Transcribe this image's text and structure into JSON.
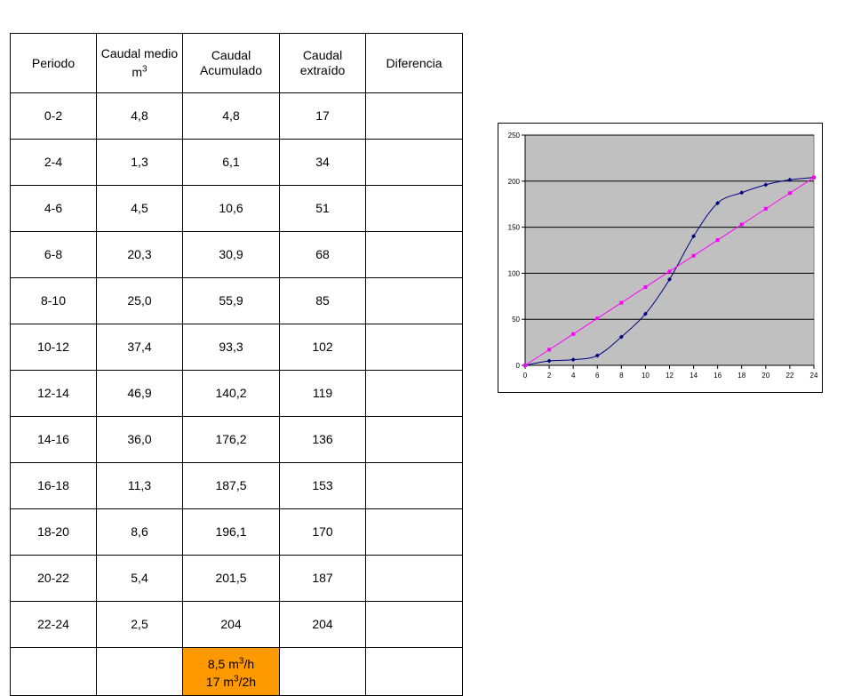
{
  "table": {
    "headers": {
      "periodo": "Periodo",
      "caudal_medio": "Caudal medio",
      "caudal_medio_unit_base": "m",
      "caudal_medio_unit_exp": "3",
      "caudal_acumulado": "Caudal Acumulado",
      "caudal_extraido": "Caudal extraído",
      "diferencia": "Diferencia"
    },
    "rows": [
      {
        "periodo": "0-2",
        "medio": "4,8",
        "acumulado": "4,8",
        "extraido": "17",
        "diferencia": ""
      },
      {
        "periodo": "2-4",
        "medio": "1,3",
        "acumulado": "6,1",
        "extraido": "34",
        "diferencia": ""
      },
      {
        "periodo": "4-6",
        "medio": "4,5",
        "acumulado": "10,6",
        "extraido": "51",
        "diferencia": ""
      },
      {
        "periodo": "6-8",
        "medio": "20,3",
        "acumulado": "30,9",
        "extraido": "68",
        "diferencia": ""
      },
      {
        "periodo": "8-10",
        "medio": "25,0",
        "acumulado": "55,9",
        "extraido": "85",
        "diferencia": ""
      },
      {
        "periodo": "10-12",
        "medio": "37,4",
        "acumulado": "93,3",
        "extraido": "102",
        "diferencia": ""
      },
      {
        "periodo": "12-14",
        "medio": "46,9",
        "acumulado": "140,2",
        "extraido": "119",
        "diferencia": ""
      },
      {
        "periodo": "14-16",
        "medio": "36,0",
        "acumulado": "176,2",
        "extraido": "136",
        "diferencia": ""
      },
      {
        "periodo": "16-18",
        "medio": "11,3",
        "acumulado": "187,5",
        "extraido": "153",
        "diferencia": ""
      },
      {
        "periodo": "18-20",
        "medio": "8,6",
        "acumulado": "196,1",
        "extraido": "170",
        "diferencia": ""
      },
      {
        "periodo": "20-22",
        "medio": "5,4",
        "acumulado": "201,5",
        "extraido": "187",
        "diferencia": ""
      },
      {
        "periodo": "22-24",
        "medio": "2,5",
        "acumulado": "204",
        "extraido": "204",
        "diferencia": ""
      }
    ],
    "footer": {
      "line1_prefix": "8,5 m",
      "line1_exp": "3",
      "line1_suffix": "/h",
      "line2_prefix": "17 m",
      "line2_exp": "3",
      "line2_suffix": "/2h"
    },
    "highlight_color": "#ff9900"
  },
  "chart_data": {
    "type": "line",
    "title": "",
    "xlabel": "",
    "ylabel": "",
    "x": [
      0,
      2,
      4,
      6,
      8,
      10,
      12,
      14,
      16,
      18,
      20,
      22,
      24
    ],
    "xlim": [
      0,
      24
    ],
    "ylim": [
      0,
      250
    ],
    "xticks": [
      0,
      2,
      4,
      6,
      8,
      10,
      12,
      14,
      16,
      18,
      20,
      22,
      24
    ],
    "yticks": [
      0,
      50,
      100,
      150,
      200,
      250
    ],
    "grid": "horizontal",
    "plot_background": "#c0c0c0",
    "series": [
      {
        "values": [
          0,
          4.8,
          6.1,
          10.6,
          30.9,
          55.9,
          93.3,
          140.2,
          176.2,
          187.5,
          196.1,
          201.5,
          204
        ],
        "color": "#000080",
        "marker": "diamond",
        "smooth": true
      },
      {
        "values": [
          0,
          17,
          34,
          51,
          68,
          85,
          102,
          119,
          136,
          153,
          170,
          187,
          204
        ],
        "color": "#ff00ff",
        "marker": "square",
        "smooth": false
      }
    ]
  }
}
